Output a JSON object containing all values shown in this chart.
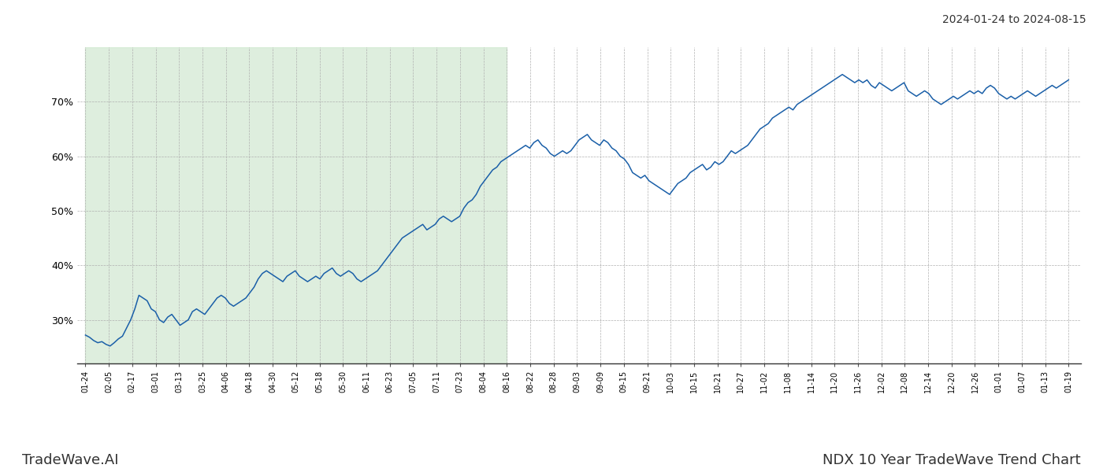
{
  "title_date_range": "2024-01-24 to 2024-08-15",
  "footer_left": "TradeWave.AI",
  "footer_right": "NDX 10 Year TradeWave Trend Chart",
  "line_color": "#1a5fa8",
  "shaded_color": "#d0e8d0",
  "shaded_alpha": 0.7,
  "background_color": "#ffffff",
  "grid_color": "#b0b0b0",
  "ylim": [
    22,
    80
  ],
  "yticks": [
    30,
    40,
    50,
    60,
    70
  ],
  "x_labels": [
    "01-24",
    "02-05",
    "02-17",
    "03-01",
    "03-13",
    "03-25",
    "04-06",
    "04-18",
    "04-30",
    "05-12",
    "05-18",
    "05-30",
    "06-11",
    "06-23",
    "07-05",
    "07-11",
    "07-23",
    "08-04",
    "08-16",
    "08-22",
    "08-28",
    "09-03",
    "09-09",
    "09-15",
    "09-21",
    "10-03",
    "10-15",
    "10-21",
    "10-27",
    "11-02",
    "11-08",
    "11-14",
    "11-20",
    "11-26",
    "12-02",
    "12-08",
    "12-14",
    "12-20",
    "12-26",
    "01-01",
    "01-07",
    "01-13",
    "01-19"
  ],
  "shaded_x_start_label": "01-24",
  "shaded_x_end_label": "08-16",
  "line_width": 1.1,
  "y_values": [
    27.2,
    26.8,
    26.2,
    25.8,
    26.0,
    25.5,
    25.2,
    25.8,
    26.5,
    27.0,
    28.5,
    30.0,
    32.0,
    34.5,
    34.0,
    33.5,
    32.0,
    31.5,
    30.0,
    29.5,
    30.5,
    31.0,
    30.0,
    29.0,
    29.5,
    30.0,
    31.5,
    32.0,
    31.5,
    31.0,
    32.0,
    33.0,
    34.0,
    34.5,
    34.0,
    33.0,
    32.5,
    33.0,
    33.5,
    34.0,
    35.0,
    36.0,
    37.5,
    38.5,
    39.0,
    38.5,
    38.0,
    37.5,
    37.0,
    38.0,
    38.5,
    39.0,
    38.0,
    37.5,
    37.0,
    37.5,
    38.0,
    37.5,
    38.5,
    39.0,
    39.5,
    38.5,
    38.0,
    38.5,
    39.0,
    38.5,
    37.5,
    37.0,
    37.5,
    38.0,
    38.5,
    39.0,
    40.0,
    41.0,
    42.0,
    43.0,
    44.0,
    45.0,
    45.5,
    46.0,
    46.5,
    47.0,
    47.5,
    46.5,
    47.0,
    47.5,
    48.5,
    49.0,
    48.5,
    48.0,
    48.5,
    49.0,
    50.5,
    51.5,
    52.0,
    53.0,
    54.5,
    55.5,
    56.5,
    57.5,
    58.0,
    59.0,
    59.5,
    60.0,
    60.5,
    61.0,
    61.5,
    62.0,
    61.5,
    62.5,
    63.0,
    62.0,
    61.5,
    60.5,
    60.0,
    60.5,
    61.0,
    60.5,
    61.0,
    62.0,
    63.0,
    63.5,
    64.0,
    63.0,
    62.5,
    62.0,
    63.0,
    62.5,
    61.5,
    61.0,
    60.0,
    59.5,
    58.5,
    57.0,
    56.5,
    56.0,
    56.5,
    55.5,
    55.0,
    54.5,
    54.0,
    53.5,
    53.0,
    54.0,
    55.0,
    55.5,
    56.0,
    57.0,
    57.5,
    58.0,
    58.5,
    57.5,
    58.0,
    59.0,
    58.5,
    59.0,
    60.0,
    61.0,
    60.5,
    61.0,
    61.5,
    62.0,
    63.0,
    64.0,
    65.0,
    65.5,
    66.0,
    67.0,
    67.5,
    68.0,
    68.5,
    69.0,
    68.5,
    69.5,
    70.0,
    70.5,
    71.0,
    71.5,
    72.0,
    72.5,
    73.0,
    73.5,
    74.0,
    74.5,
    75.0,
    74.5,
    74.0,
    73.5,
    74.0,
    73.5,
    74.0,
    73.0,
    72.5,
    73.5,
    73.0,
    72.5,
    72.0,
    72.5,
    73.0,
    73.5,
    72.0,
    71.5,
    71.0,
    71.5,
    72.0,
    71.5,
    70.5,
    70.0,
    69.5,
    70.0,
    70.5,
    71.0,
    70.5,
    71.0,
    71.5,
    72.0,
    71.5,
    72.0,
    71.5,
    72.5,
    73.0,
    72.5,
    71.5,
    71.0,
    70.5,
    71.0,
    70.5,
    71.0,
    71.5,
    72.0,
    71.5,
    71.0,
    71.5,
    72.0,
    72.5,
    73.0,
    72.5,
    73.0,
    73.5,
    74.0
  ]
}
